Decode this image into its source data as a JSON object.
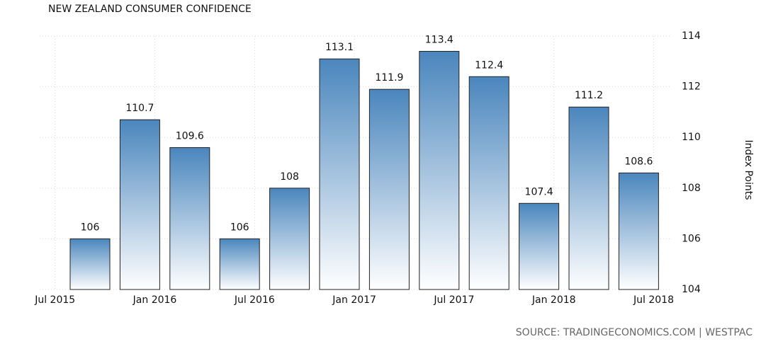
{
  "chart_data": {
    "type": "bar",
    "title": "NEW ZEALAND CONSUMER CONFIDENCE",
    "y_label": "Index Points",
    "source": "SOURCE: TRADINGECONOMICS.COM | WESTPAC",
    "categories": [
      null,
      null,
      null,
      null,
      null,
      null,
      null,
      null,
      null,
      null,
      null,
      null
    ],
    "values": [
      106,
      110.7,
      109.6,
      106,
      108,
      113.1,
      111.9,
      113.4,
      112.4,
      107.4,
      111.2,
      108.6
    ],
    "color": "#4a86bd",
    "x_tick_labels": [
      "Jul 2015",
      "Jan 2016",
      "Jul 2016",
      "Jan 2017",
      "Jul 2017",
      "Jan 2018",
      "Jul 2018"
    ],
    "ylim": [
      104,
      114
    ],
    "yticks": [
      104,
      106,
      108,
      110,
      112,
      114
    ],
    "grid": true
  }
}
